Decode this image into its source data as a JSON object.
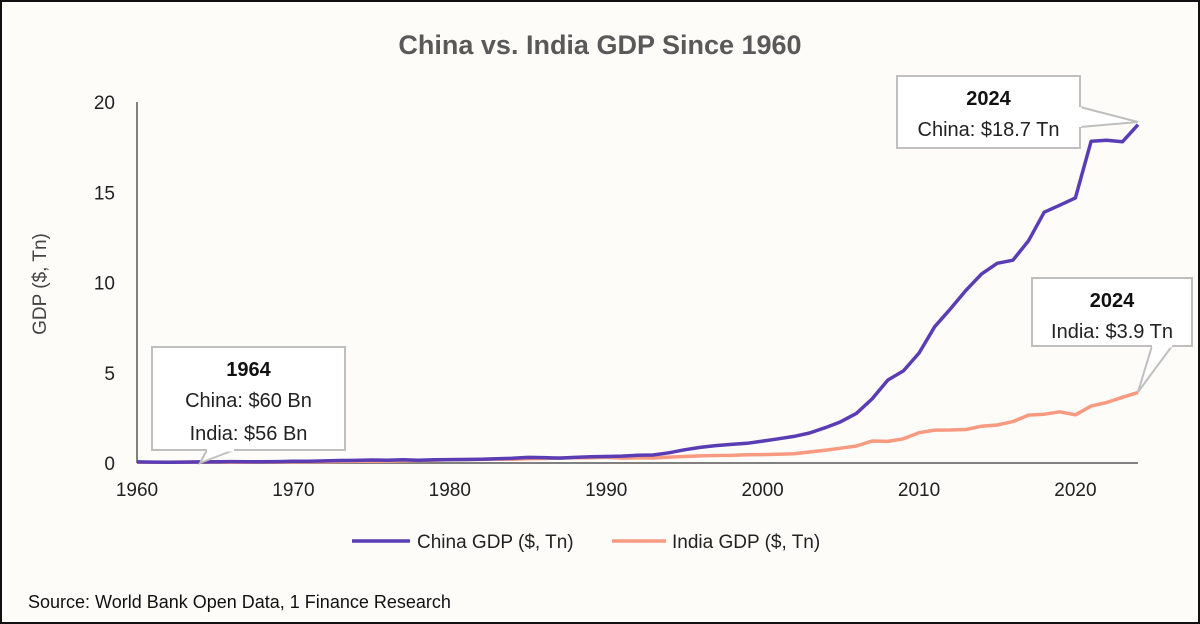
{
  "chart_data": {
    "type": "line",
    "title": "China vs. India GDP Since 1960",
    "ylabel": "GDP ($, Tn)",
    "xlabel": "",
    "xlim": [
      1960,
      2024
    ],
    "ylim": [
      0,
      20
    ],
    "x_ticks": [
      "1960",
      "1970",
      "1980",
      "1990",
      "2000",
      "2010",
      "2020"
    ],
    "y_ticks": [
      "0",
      "5",
      "10",
      "15",
      "20"
    ],
    "grid": false,
    "legend_position": "bottom",
    "x": [
      1960,
      1961,
      1962,
      1963,
      1964,
      1965,
      1966,
      1967,
      1968,
      1969,
      1970,
      1971,
      1972,
      1973,
      1974,
      1975,
      1976,
      1977,
      1978,
      1979,
      1980,
      1981,
      1982,
      1983,
      1984,
      1985,
      1986,
      1987,
      1988,
      1989,
      1990,
      1991,
      1992,
      1993,
      1994,
      1995,
      1996,
      1997,
      1998,
      1999,
      2000,
      2001,
      2002,
      2003,
      2004,
      2005,
      2006,
      2007,
      2008,
      2009,
      2010,
      2011,
      2012,
      2013,
      2014,
      2015,
      2016,
      2017,
      2018,
      2019,
      2020,
      2021,
      2022,
      2023,
      2024
    ],
    "series": [
      {
        "name": "China GDP ($, Tn)",
        "color": "#5a3db5",
        "values": [
          0.06,
          0.05,
          0.047,
          0.051,
          0.06,
          0.07,
          0.076,
          0.072,
          0.07,
          0.079,
          0.093,
          0.1,
          0.114,
          0.139,
          0.144,
          0.164,
          0.154,
          0.175,
          0.15,
          0.178,
          0.191,
          0.196,
          0.205,
          0.231,
          0.26,
          0.31,
          0.301,
          0.274,
          0.313,
          0.348,
          0.361,
          0.383,
          0.427,
          0.445,
          0.564,
          0.734,
          0.864,
          0.962,
          1.029,
          1.094,
          1.211,
          1.339,
          1.471,
          1.66,
          1.955,
          2.286,
          2.752,
          3.55,
          4.594,
          5.102,
          6.087,
          7.552,
          8.532,
          9.57,
          10.475,
          11.062,
          11.233,
          12.31,
          13.895,
          14.28,
          14.688,
          17.82,
          17.882,
          17.795,
          18.74
        ]
      },
      {
        "name": "India GDP ($, Tn)",
        "color": "#f89a80",
        "values": [
          0.037,
          0.039,
          0.042,
          0.048,
          0.056,
          0.059,
          0.046,
          0.05,
          0.053,
          0.058,
          0.062,
          0.067,
          0.071,
          0.085,
          0.099,
          0.098,
          0.102,
          0.121,
          0.137,
          0.153,
          0.186,
          0.193,
          0.2,
          0.218,
          0.212,
          0.233,
          0.249,
          0.279,
          0.296,
          0.296,
          0.321,
          0.27,
          0.288,
          0.279,
          0.327,
          0.36,
          0.393,
          0.416,
          0.421,
          0.458,
          0.468,
          0.485,
          0.515,
          0.608,
          0.709,
          0.82,
          0.94,
          1.217,
          1.199,
          1.342,
          1.676,
          1.823,
          1.828,
          1.857,
          2.039,
          2.104,
          2.295,
          2.651,
          2.703,
          2.836,
          2.672,
          3.15,
          3.354,
          3.64,
          3.91
        ]
      }
    ],
    "annotations": [
      {
        "year": "1964",
        "lines": [
          "China: $60 Bn",
          "India: $56 Bn"
        ]
      },
      {
        "year": "2024",
        "lines": [
          "China: $18.7 Tn"
        ]
      },
      {
        "year": "2024",
        "lines": [
          "India: $3.9 Tn"
        ]
      }
    ]
  },
  "source": "Source: World Bank Open Data, 1 Finance Research",
  "colors": {
    "axis": "#808080",
    "callout_border": "#bfbfbf",
    "background": "#fdfcf9"
  }
}
